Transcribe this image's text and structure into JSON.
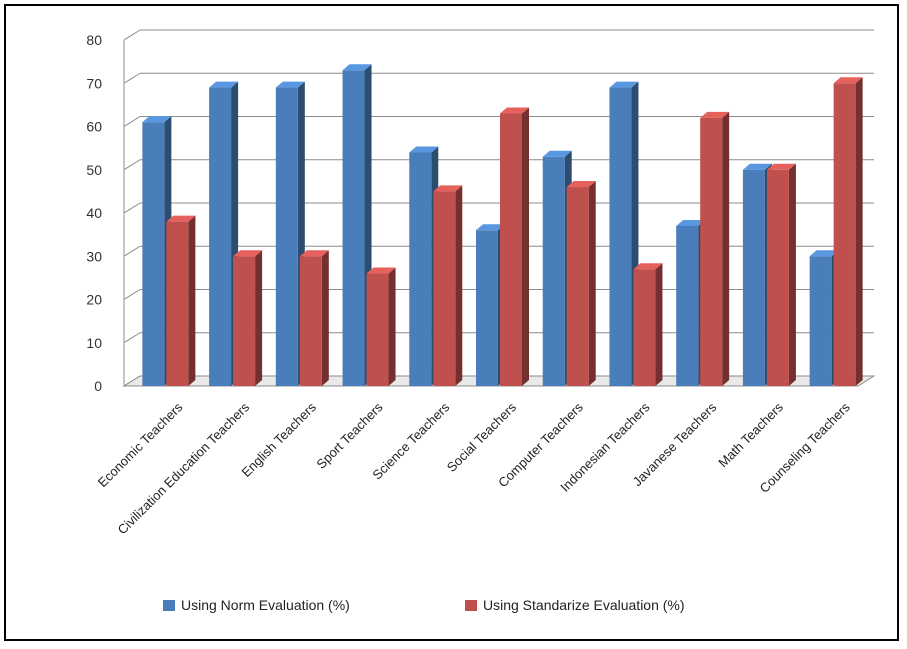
{
  "chart_data": {
    "type": "bar",
    "categories": [
      "Economic Teachers",
      "Civilization Education Teachers",
      "English Teachers",
      "Sport Teachers",
      "Science Teachers",
      "Social Teachers",
      "Computer Teachers",
      "Indonesian Teachers",
      "Javanese Teachers",
      "Math Teachers",
      "Counseling Teachers"
    ],
    "series": [
      {
        "name": "Using Norm Evaluation (%)",
        "values": [
          61,
          69,
          69,
          73,
          54,
          36,
          53,
          69,
          37,
          50,
          30
        ],
        "color": "#4a7ebb"
      },
      {
        "name": "Using Standarize Evaluation (%)",
        "values": [
          38,
          30,
          30,
          26,
          45,
          63,
          46,
          27,
          62,
          50,
          70
        ],
        "color": "#c0504d"
      }
    ],
    "yticks": [
      "0",
      "10",
      "20",
      "30",
      "40",
      "50",
      "60",
      "70",
      "80"
    ],
    "ylim": [
      0,
      80
    ],
    "grid": true,
    "legend_position": "bottom",
    "title": "",
    "xlabel": "",
    "ylabel": ""
  }
}
